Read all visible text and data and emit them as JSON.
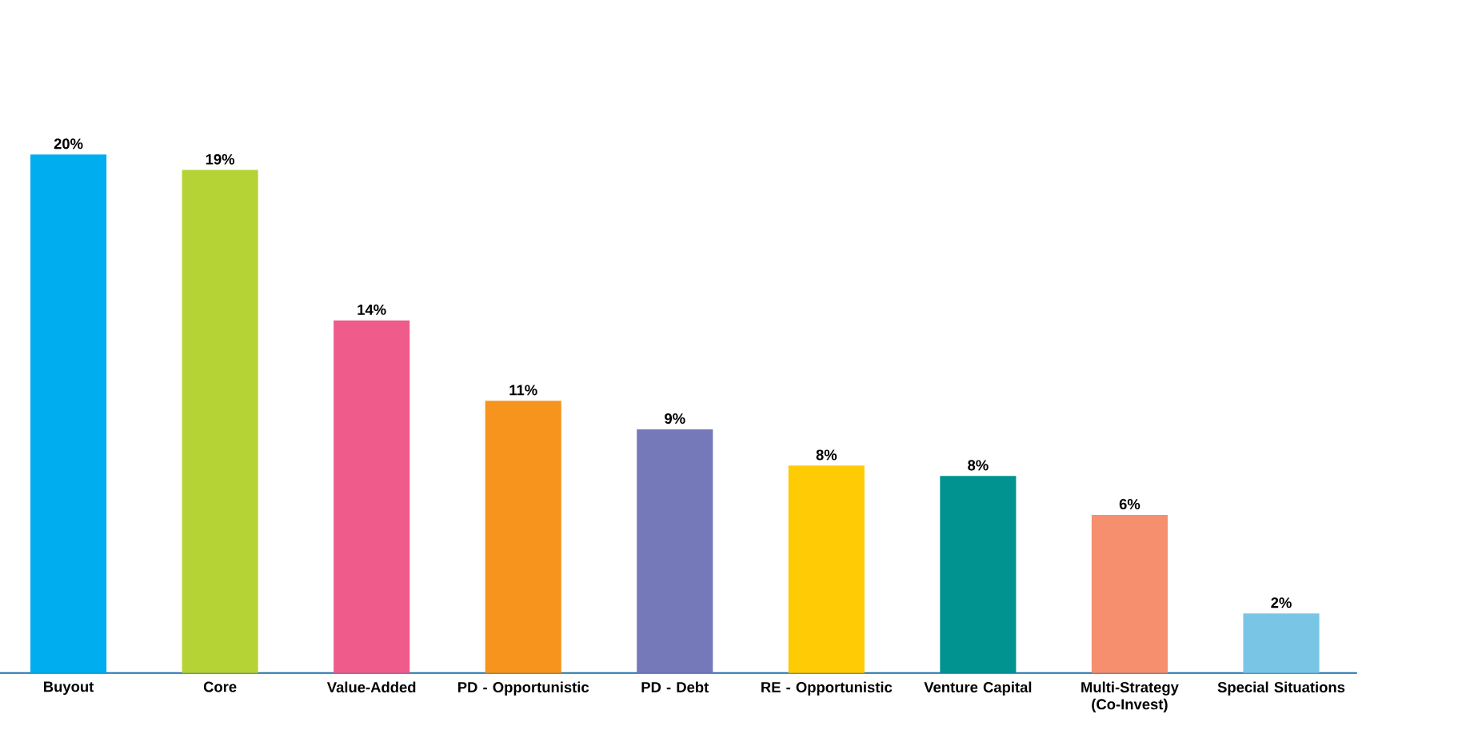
{
  "chart_data": {
    "type": "bar",
    "categories": [
      "Buyout",
      "Core",
      "Value-Added",
      "PD - Opportunistic",
      "PD - Debt",
      "RE - Opportunistic",
      "Venture Capital",
      "Multi-Strategy (Co-Invest)",
      "Special Situations"
    ],
    "values": [
      20,
      19.4,
      13.6,
      10.5,
      9.4,
      8.0,
      7.6,
      6.1,
      2.3
    ],
    "value_labels": [
      "20%",
      "19%",
      "14%",
      "11%",
      "9%",
      "8%",
      "8%",
      "6%",
      "2%"
    ],
    "colors": [
      "#00aeef",
      "#b5d334",
      "#ef5b8a",
      "#f7941d",
      "#7679b9",
      "#ffcb05",
      "#009390",
      "#f58f6e",
      "#79c5e6"
    ]
  }
}
